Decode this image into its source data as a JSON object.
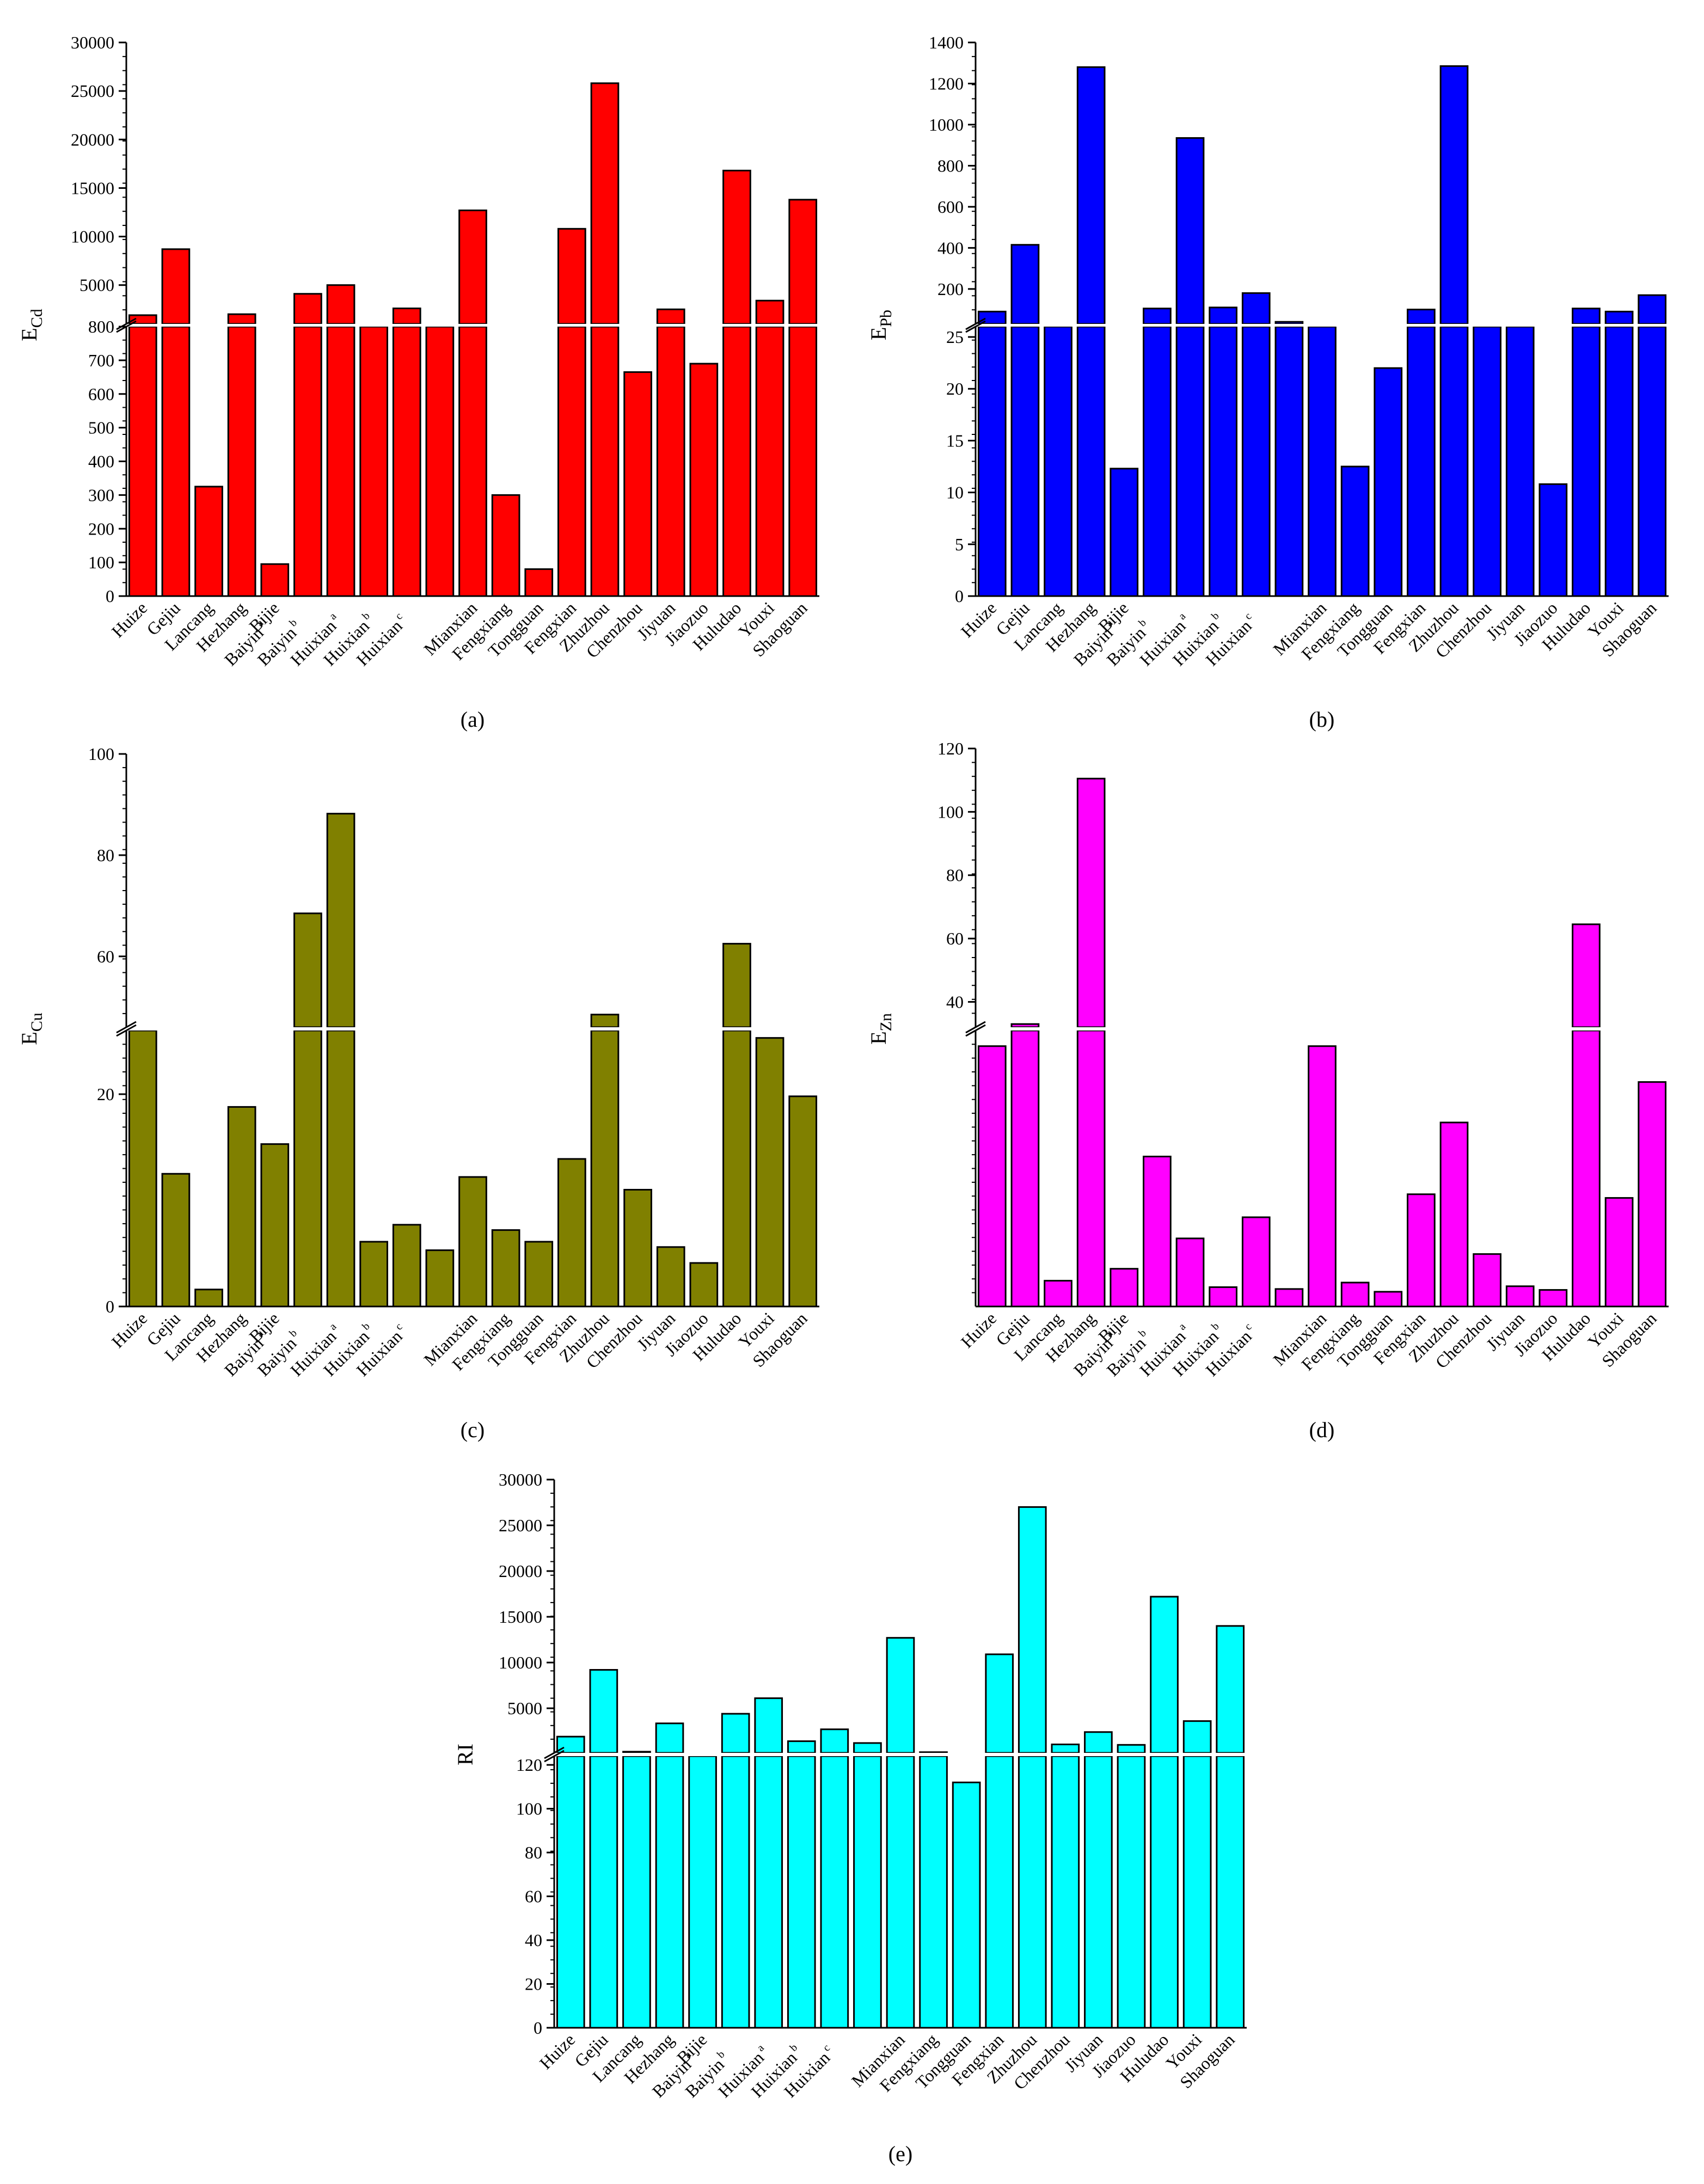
{
  "figure": {
    "panel_captions": [
      "(a)",
      "(b)",
      "(c)",
      "(d)",
      "(e)"
    ]
  },
  "chart_data": [
    {
      "type": "bar",
      "panel": "(a)",
      "ylabel_base": "E",
      "ylabel_sub": "Cd",
      "color": "#ff0000",
      "axis_break": true,
      "categories": [
        "Huize",
        "Gejiu",
        "Lancang",
        "Hezhang",
        "Bijie",
        "Baiyin a",
        "Baiyin b",
        "Huixian a",
        "Huixian b",
        "Huixian c",
        "Mianxian",
        "Fengxiang",
        "Tongguan",
        "Fengxian",
        "Zhuzhou",
        "Chenzhou",
        "Jiyuan",
        "Jiaozuo",
        "Huludao",
        "Youxi",
        "Shaoguan"
      ],
      "values": [
        1900,
        8700,
        325,
        2000,
        95,
        4100,
        5000,
        1000,
        2600,
        800,
        12700,
        300,
        80,
        10800,
        25800,
        665,
        2500,
        690,
        16800,
        3400,
        13800
      ],
      "lower_ylim": [
        0,
        800
      ],
      "lower_ticks": [
        0,
        100,
        200,
        300,
        400,
        500,
        600,
        700,
        800
      ],
      "upper_ylim": [
        1000,
        30000
      ],
      "upper_ticks": [
        5000,
        10000,
        15000,
        20000,
        25000,
        30000
      ]
    },
    {
      "type": "bar",
      "panel": "(b)",
      "ylabel_base": "E",
      "ylabel_sub": "Pb",
      "color": "#0000ff",
      "axis_break": true,
      "categories": [
        "Huize",
        "Gejiu",
        "Lancang",
        "Hezhang",
        "Bijie",
        "Baiyin a",
        "Baiyin b",
        "Huixian a",
        "Huixian b",
        "Huixian c",
        "Mianxian",
        "Fengxiang",
        "Tongguan",
        "Fengxian",
        "Zhuzhou",
        "Chenzhou",
        "Jiyuan",
        "Jiaozuo",
        "Huludao",
        "Youxi",
        "Shaoguan"
      ],
      "values": [
        90,
        415,
        26,
        1280,
        12.3,
        105,
        935,
        110,
        180,
        40,
        26,
        12.5,
        22,
        100,
        1285,
        26,
        26,
        10.8,
        105,
        90,
        170
      ],
      "lower_ylim": [
        0,
        26
      ],
      "lower_ticks": [
        0,
        5,
        10,
        15,
        20,
        25
      ],
      "upper_ylim": [
        30,
        1400
      ],
      "upper_ticks": [
        200,
        400,
        600,
        800,
        1000,
        1200,
        1400
      ]
    },
    {
      "type": "bar",
      "panel": "(c)",
      "ylabel_base": "E",
      "ylabel_sub": "Cu",
      "color": "#808000",
      "axis_break": true,
      "categories": [
        "Huize",
        "Gejiu",
        "Lancang",
        "Hezhang",
        "Bijie",
        "Baiyin a",
        "Baiyin b",
        "Huixian a",
        "Huixian b",
        "Huixian c",
        "Mianxian",
        "Fengxiang",
        "Tongguan",
        "Fengxian",
        "Zhuzhou",
        "Chenzhou",
        "Jiyuan",
        "Jiaozuo",
        "Huludao",
        "Youxi",
        "Shaoguan"
      ],
      "values": [
        26,
        12.5,
        1.6,
        18.8,
        15.3,
        68.5,
        88.2,
        6.1,
        7.7,
        5.3,
        12.2,
        7.2,
        6.1,
        13.9,
        48.5,
        11,
        5.6,
        4.1,
        62.5,
        25.3,
        19.8
      ],
      "lower_ylim": [
        0,
        26
      ],
      "lower_ticks": [
        0,
        20
      ],
      "upper_ylim": [
        46,
        100
      ],
      "upper_ticks": [
        60,
        80,
        100
      ]
    },
    {
      "type": "bar",
      "panel": "(d)",
      "ylabel_base": "E",
      "ylabel_sub": "Zn",
      "color": "#ff00ff",
      "axis_break": true,
      "categories": [
        "Huize",
        "Gejiu",
        "Lancang",
        "Hezhang",
        "Bijie",
        "Baiyin a",
        "Baiyin b",
        "Huixian a",
        "Huixian b",
        "Huixian c",
        "Mianxian",
        "Fengxiang",
        "Tongguan",
        "Fengxian",
        "Zhuzhou",
        "Chenzhou",
        "Jiyuan",
        "Jiaozuo",
        "Huludao",
        "Youxi",
        "Shaoguan"
      ],
      "values": [
        28.3,
        33,
        2.8,
        110.5,
        4.1,
        16.3,
        7.4,
        2.1,
        9.7,
        1.9,
        28.3,
        2.6,
        1.6,
        12.2,
        20,
        5.7,
        2.2,
        1.8,
        64.5,
        11.8,
        24.4
      ],
      "lower_ylim": [
        0,
        30
      ],
      "lower_ticks": [],
      "upper_ylim": [
        32,
        120
      ],
      "upper_ticks": [
        40,
        60,
        80,
        100,
        120
      ]
    },
    {
      "type": "bar",
      "panel": "(e)",
      "ylabel_base": "RI",
      "ylabel_sub": "",
      "color": "#00ffff",
      "axis_break": true,
      "categories": [
        "Huize",
        "Gejiu",
        "Lancang",
        "Hezhang",
        "Bijie",
        "Baiyin a",
        "Baiyin b",
        "Huixian a",
        "Huixian b",
        "Huixian c",
        "Mianxian",
        "Fengxiang",
        "Tongguan",
        "Fengxian",
        "Zhuzhou",
        "Chenzhou",
        "Jiyuan",
        "Jiaozuo",
        "Huludao",
        "Youxi",
        "Shaoguan"
      ],
      "values": [
        1900,
        9200,
        250,
        3350,
        124,
        4400,
        6100,
        1400,
        2700,
        1200,
        12700,
        200,
        112,
        10900,
        27000,
        1050,
        2400,
        1000,
        17200,
        3600,
        14000
      ],
      "lower_ylim": [
        0,
        124
      ],
      "lower_ticks": [
        0,
        20,
        40,
        60,
        80,
        100,
        120
      ],
      "upper_ylim": [
        125,
        30000
      ],
      "upper_ticks": [
        5000,
        10000,
        15000,
        20000,
        25000,
        30000
      ]
    }
  ]
}
